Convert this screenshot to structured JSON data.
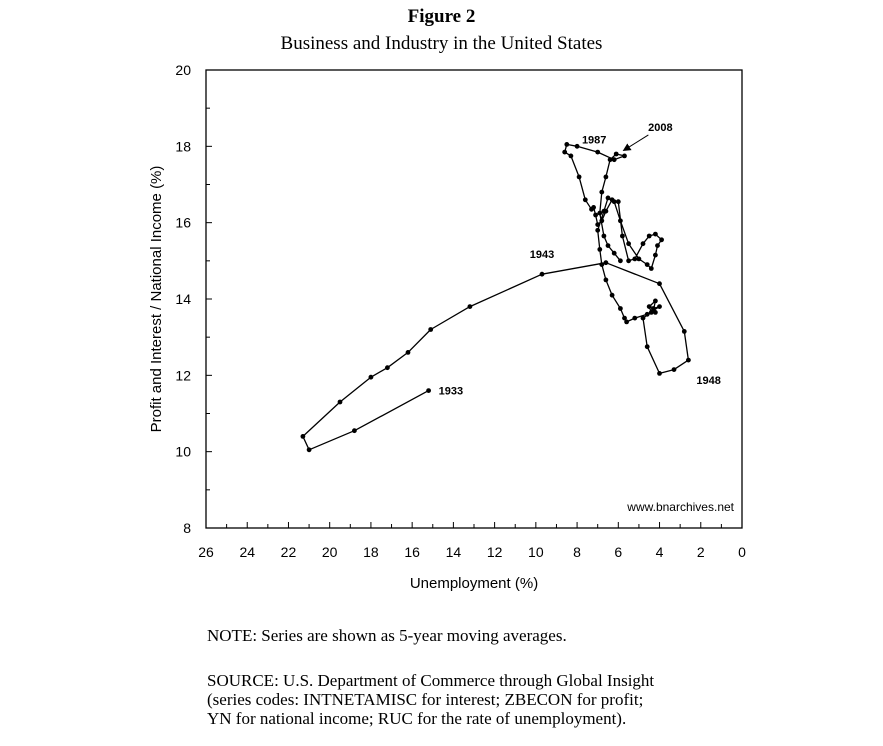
{
  "figure": {
    "title": "Figure 2",
    "subtitle": "Business and Industry in the United States"
  },
  "note": "NOTE: Series are shown as 5-year moving averages.",
  "source_lines": [
    "SOURCE: U.S. Department of Commerce through Global Insight",
    "(series codes: INTNETAMISC for interest; ZBECON for profit;",
    "YN for national income; RUC for the rate of unemployment)."
  ],
  "chart_data": {
    "type": "line",
    "title": "Business and Industry in the United States",
    "xlabel": "Unemployment (%)",
    "ylabel": "Profit and Interest / National Income (%)",
    "xlim": [
      26,
      0
    ],
    "ylim": [
      8,
      20
    ],
    "x_reversed": true,
    "x_ticks": [
      "26",
      "24",
      "22",
      "20",
      "18",
      "16",
      "14",
      "12",
      "10",
      "8",
      "6",
      "4",
      "2",
      "0"
    ],
    "y_ticks": [
      "8",
      "10",
      "12",
      "14",
      "16",
      "18",
      "20"
    ],
    "watermark": "www.bnarchives.net",
    "grid": false,
    "legend": "none",
    "series": [
      {
        "x": [
          15.2,
          18.8,
          21.0,
          21.3,
          19.5,
          18.0,
          17.2,
          16.2,
          15.1,
          13.2,
          9.7,
          6.6,
          4.0,
          2.8,
          2.6,
          3.3,
          4.0,
          4.6,
          4.8,
          4.4,
          4.5,
          4.2,
          4.3,
          4.0,
          4.3,
          4.2,
          4.6,
          5.2,
          5.6,
          5.7,
          5.9,
          6.3,
          6.6,
          6.8,
          6.9,
          7.0,
          6.7,
          6.5,
          6.2,
          5.9,
          5.5,
          5.0,
          4.6,
          4.4,
          4.2,
          4.1,
          3.9,
          4.2,
          4.5,
          4.8,
          5.2,
          5.5,
          5.8,
          6.0,
          6.3,
          6.6,
          6.8,
          7.0,
          7.1,
          7.2,
          7.3,
          7.6,
          7.9,
          8.3,
          8.6,
          8.5,
          8.0,
          7.0,
          6.2,
          5.7,
          6.1,
          6.4,
          6.6,
          6.8,
          6.9,
          6.7,
          6.5,
          6.2,
          5.9
        ],
        "y": [
          11.6,
          10.55,
          10.05,
          10.4,
          11.3,
          11.95,
          12.2,
          12.6,
          13.2,
          13.8,
          14.65,
          14.95,
          14.4,
          13.15,
          12.4,
          12.15,
          12.05,
          12.75,
          13.5,
          13.65,
          13.8,
          13.95,
          13.7,
          13.8,
          13.75,
          13.65,
          13.6,
          13.5,
          13.4,
          13.5,
          13.75,
          14.1,
          14.5,
          14.9,
          15.3,
          15.8,
          16.3,
          16.65,
          16.55,
          16.05,
          15.45,
          15.05,
          14.9,
          14.8,
          15.15,
          15.4,
          15.55,
          15.7,
          15.65,
          15.45,
          15.05,
          15.0,
          15.65,
          16.55,
          16.6,
          16.3,
          16.05,
          15.95,
          16.2,
          16.4,
          16.35,
          16.6,
          17.2,
          17.75,
          17.85,
          18.05,
          18.0,
          17.85,
          17.65,
          17.75,
          17.8,
          17.65,
          17.2,
          16.8,
          16.25,
          15.65,
          15.4,
          15.2,
          15.0
        ]
      }
    ],
    "annotations": [
      {
        "text": "1933",
        "x": 15.2,
        "y": 11.6
      },
      {
        "text": "1943",
        "x": 9.7,
        "y": 14.65
      },
      {
        "text": "1948",
        "x": 2.6,
        "y": 12.4
      },
      {
        "text": "1987",
        "x": 6.2,
        "y": 17.65
      },
      {
        "text": "2008",
        "x": 5.9,
        "y": 17.8
      }
    ]
  }
}
